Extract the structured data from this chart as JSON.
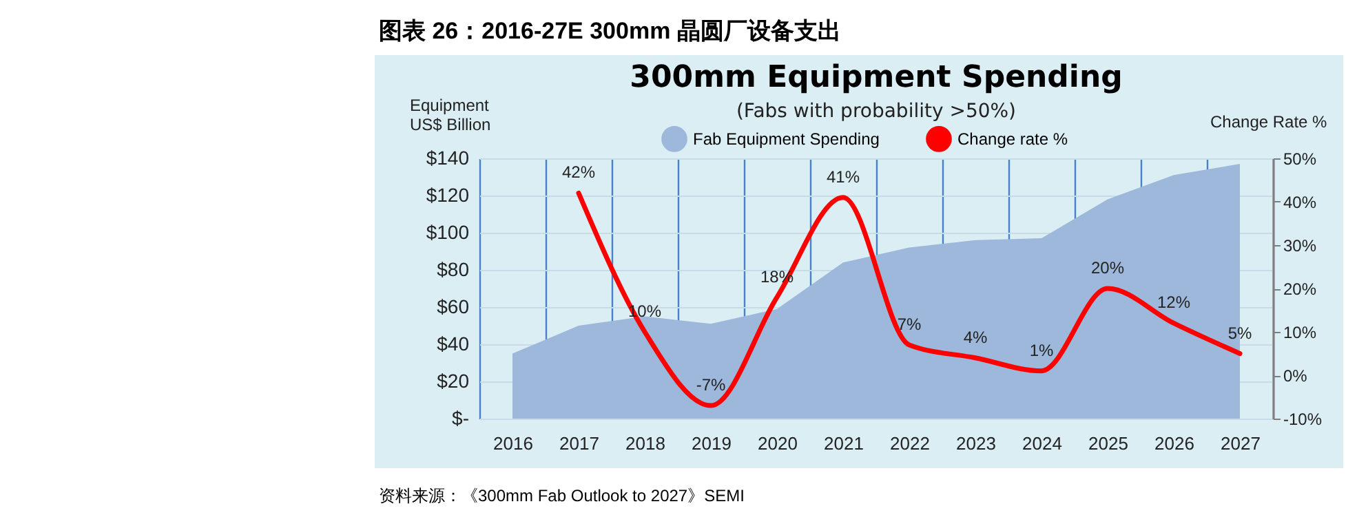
{
  "chart_data": {
    "type": "area",
    "title": "300mm Equipment Spending",
    "subtitle": "(Fabs with probability >50%)",
    "ylabel": "Equipment\nUS$ Billion",
    "y2label": "Change Rate %",
    "annotations": [
      "图表 26：2016-27E 300mm 晶圆厂设备支出",
      "资料来源：《300mm Fab Outlook to 2027》SEMI"
    ],
    "categories": [
      "2016",
      "2017",
      "2018",
      "2019",
      "2020",
      "2021",
      "2022",
      "2023",
      "2024",
      "2025",
      "2026",
      "2027"
    ],
    "series": [
      {
        "name": "Fab Equipment Spending",
        "color": "#9db8da",
        "values": [
          35,
          50,
          55,
          51,
          59,
          84,
          92,
          96,
          97,
          118,
          131,
          137
        ]
      },
      {
        "name": "Change rate %",
        "type": "line",
        "axis": "y2",
        "color": "#ff0000",
        "values": [
          null,
          42,
          10,
          -7,
          18,
          41,
          7,
          4,
          1,
          20,
          12,
          5
        ],
        "value_labels": [
          null,
          "42%",
          "10%",
          "-7%",
          "18%",
          "41%",
          "7%",
          "4%",
          "1%",
          "20%",
          "12%",
          "5%"
        ]
      }
    ],
    "ylim": [
      0,
      140
    ],
    "yticks": [
      {
        "value": 0,
        "label": "$-"
      },
      {
        "value": 20,
        "label": "$20"
      },
      {
        "value": 40,
        "label": "$40"
      },
      {
        "value": 60,
        "label": "$60"
      },
      {
        "value": 80,
        "label": "$80"
      },
      {
        "value": 100,
        "label": "$100"
      },
      {
        "value": 120,
        "label": "$120"
      },
      {
        "value": 140,
        "label": "$140"
      }
    ],
    "y2lim": [
      -10,
      50
    ],
    "y2ticks": [
      {
        "value": -10,
        "label": "-10%"
      },
      {
        "value": 0,
        "label": "0%"
      },
      {
        "value": 10,
        "label": "10%"
      },
      {
        "value": 20,
        "label": "20%"
      },
      {
        "value": 30,
        "label": "30%"
      },
      {
        "value": 40,
        "label": "40%"
      },
      {
        "value": 50,
        "label": "50%"
      }
    ],
    "grid": true,
    "legend": "top",
    "marker": "none",
    "line_style": "solid"
  }
}
